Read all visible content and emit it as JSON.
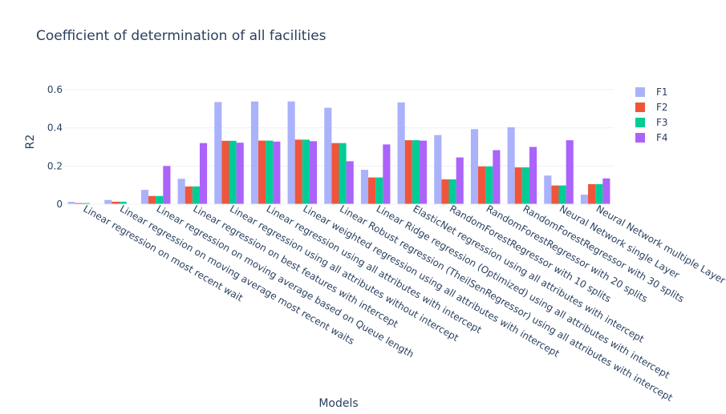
{
  "colors": {
    "F1": "#aab2fb",
    "F2": "#ef553b",
    "F3": "#00cc96",
    "F4": "#ab63fa",
    "grid": "#ebf0f8",
    "text": "#2a3f5f"
  },
  "chart_data": {
    "type": "bar",
    "title": "Coefficient of determination of all facilities",
    "xlabel": "Models",
    "ylabel": "R2",
    "ylim": [
      0,
      0.65
    ],
    "yticks": [
      0,
      0.2,
      0.4,
      0.6
    ],
    "ytick_labels": [
      "0",
      "0.2",
      "0.4",
      "0.6"
    ],
    "grid": true,
    "legend_position": "top-right",
    "categories": [
      "Linear regression on most recent wait",
      "Linear regression on moving average most recent waits",
      "Linear regression on moving average based on Queue length",
      "Linear regression on best features with intercept",
      "Linear regression using all attributes without intercept",
      "Linear regression using all attributes with intercept",
      "Linear weighted regression using all attributes with intercept",
      "Linear Robust regression (TheilSenRegressor) using all attributes with intercept",
      "Linear Ridge regression (Optimized) using all attributes with intercept",
      "ElasticNet regression using all attributes with intercept",
      "RandomForestRegressor with 10 splits",
      "RandomForestRegressor with 20 splits",
      "RandomForestRegressor with 30 splits",
      "Neural Network single Layer",
      "Neural Network multiple Layer"
    ],
    "series": [
      {
        "name": "F1",
        "values": [
          0.012,
          0.022,
          0.075,
          0.133,
          0.535,
          0.538,
          0.538,
          0.505,
          0.18,
          0.533,
          0.362,
          0.393,
          0.403,
          0.15,
          0.05
        ]
      },
      {
        "name": "F2",
        "values": [
          0.006,
          0.013,
          0.043,
          0.093,
          0.332,
          0.333,
          0.338,
          0.32,
          0.14,
          0.335,
          0.13,
          0.198,
          0.193,
          0.098,
          0.105
        ]
      },
      {
        "name": "F3",
        "values": [
          0.006,
          0.013,
          0.043,
          0.093,
          0.332,
          0.333,
          0.338,
          0.32,
          0.14,
          0.335,
          0.13,
          0.198,
          0.193,
          0.098,
          0.105
        ]
      },
      {
        "name": "F4",
        "values": [
          0.002,
          0.002,
          0.2,
          0.32,
          0.322,
          0.328,
          0.33,
          0.225,
          0.313,
          0.333,
          0.245,
          0.283,
          0.3,
          0.335,
          0.135
        ]
      }
    ]
  }
}
